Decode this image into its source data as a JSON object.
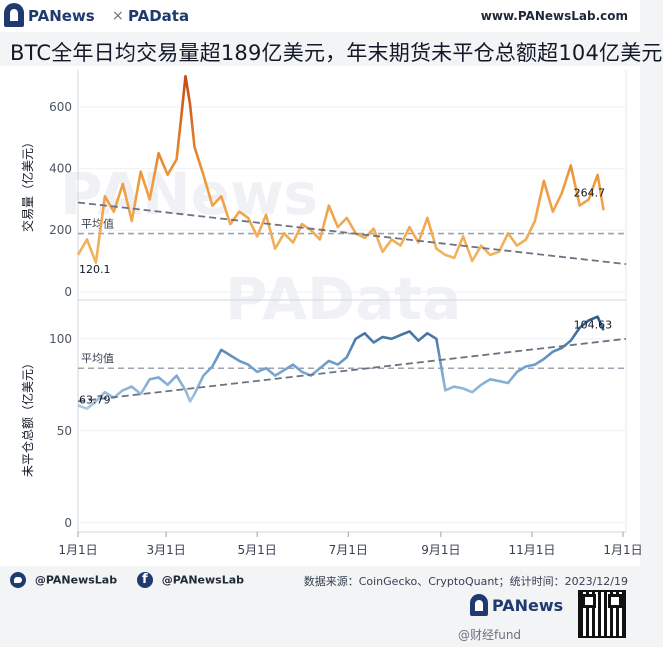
{
  "header": {
    "brand_left": "PANews",
    "separator": "×",
    "brand_right": "PAData",
    "site_url": "www.PANewsLab.com"
  },
  "title": "BTC全年日均交易量超189亿美元，年末期货未平仓总额超104亿美元",
  "watermarks": {
    "top": "PANews",
    "middle": "PAData"
  },
  "footer": {
    "twitter": "@PANewsLab",
    "facebook": "@PANewsLab",
    "source": "数据来源：CoinGecko、CryptoQuant；统计时间：2023/12/19",
    "logo_text": "PANews",
    "overlay_text": "@财经fund"
  },
  "colors": {
    "volume_low": "#f4b462",
    "volume_high": "#c54a12",
    "oi_low": "#a9c9e6",
    "oi_high": "#2a5b8c",
    "average_line": "#9ca3af",
    "trend_line": "#6b7280"
  },
  "chart_data": [
    {
      "type": "line",
      "ylabel": "交易量（亿美元）",
      "ylim": [
        -20,
        720
      ],
      "yticks": [
        0,
        200,
        400,
        600
      ],
      "x_start": "2023-01-01",
      "x_end": "2023-12-19",
      "xticks": [
        "1月1日",
        "3月1日",
        "5月1日",
        "7月1日",
        "9月1日",
        "11月1日",
        "1月1日"
      ],
      "average_label": "平均值",
      "average": 189,
      "first_label": "120.1",
      "last_label": "264.7",
      "trend": [
        290,
        90
      ],
      "x": [
        "2023-01-01",
        "2023-01-07",
        "2023-01-13",
        "2023-01-19",
        "2023-01-25",
        "2023-01-31",
        "2023-02-06",
        "2023-02-12",
        "2023-02-18",
        "2023-02-24",
        "2023-03-02",
        "2023-03-08",
        "2023-03-11",
        "2023-03-14",
        "2023-03-17",
        "2023-03-20",
        "2023-03-26",
        "2023-04-01",
        "2023-04-07",
        "2023-04-13",
        "2023-04-19",
        "2023-04-25",
        "2023-05-01",
        "2023-05-07",
        "2023-05-13",
        "2023-05-19",
        "2023-05-25",
        "2023-05-31",
        "2023-06-06",
        "2023-06-12",
        "2023-06-18",
        "2023-06-24",
        "2023-06-30",
        "2023-07-06",
        "2023-07-12",
        "2023-07-18",
        "2023-07-24",
        "2023-07-30",
        "2023-08-05",
        "2023-08-11",
        "2023-08-17",
        "2023-08-23",
        "2023-08-29",
        "2023-09-04",
        "2023-09-10",
        "2023-09-16",
        "2023-09-22",
        "2023-09-28",
        "2023-10-04",
        "2023-10-10",
        "2023-10-16",
        "2023-10-22",
        "2023-10-28",
        "2023-11-03",
        "2023-11-09",
        "2023-11-15",
        "2023-11-21",
        "2023-11-27",
        "2023-12-03",
        "2023-12-09",
        "2023-12-15",
        "2023-12-19"
      ],
      "values": [
        120.1,
        170,
        95,
        310,
        260,
        350,
        230,
        390,
        300,
        450,
        380,
        430,
        560,
        700,
        610,
        470,
        380,
        280,
        310,
        220,
        260,
        240,
        180,
        250,
        140,
        190,
        160,
        220,
        200,
        170,
        280,
        210,
        240,
        190,
        175,
        205,
        130,
        170,
        150,
        210,
        160,
        240,
        140,
        120,
        110,
        180,
        100,
        150,
        120,
        130,
        190,
        150,
        170,
        230,
        360,
        260,
        320,
        410,
        280,
        300,
        380,
        264.7
      ]
    },
    {
      "type": "line",
      "ylabel": "未平仓总额（亿美元）",
      "ylim": [
        -5,
        120
      ],
      "yticks": [
        0,
        50,
        100
      ],
      "x_start": "2023-01-01",
      "x_end": "2023-12-19",
      "xticks": [
        "1月1日",
        "3月1日",
        "5月1日",
        "7月1日",
        "9月1日",
        "11月1日",
        "1月1日"
      ],
      "average_label": "平均值",
      "average": 84,
      "first_label": "63.79",
      "last_label": "104.63",
      "trend": [
        66,
        100
      ],
      "x": [
        "2023-01-01",
        "2023-01-07",
        "2023-01-13",
        "2023-01-19",
        "2023-01-25",
        "2023-01-31",
        "2023-02-06",
        "2023-02-12",
        "2023-02-18",
        "2023-02-24",
        "2023-03-02",
        "2023-03-08",
        "2023-03-11",
        "2023-03-14",
        "2023-03-17",
        "2023-03-20",
        "2023-03-26",
        "2023-04-01",
        "2023-04-07",
        "2023-04-13",
        "2023-04-19",
        "2023-04-25",
        "2023-05-01",
        "2023-05-07",
        "2023-05-13",
        "2023-05-19",
        "2023-05-25",
        "2023-05-31",
        "2023-06-06",
        "2023-06-12",
        "2023-06-18",
        "2023-06-24",
        "2023-06-30",
        "2023-07-06",
        "2023-07-12",
        "2023-07-18",
        "2023-07-24",
        "2023-07-30",
        "2023-08-05",
        "2023-08-11",
        "2023-08-17",
        "2023-08-23",
        "2023-08-29",
        "2023-09-04",
        "2023-09-10",
        "2023-09-16",
        "2023-09-22",
        "2023-09-28",
        "2023-10-04",
        "2023-10-10",
        "2023-10-16",
        "2023-10-22",
        "2023-10-28",
        "2023-11-03",
        "2023-11-09",
        "2023-11-15",
        "2023-11-21",
        "2023-11-27",
        "2023-12-03",
        "2023-12-09",
        "2023-12-15",
        "2023-12-19"
      ],
      "values": [
        63.79,
        62,
        66,
        71,
        68,
        72,
        74,
        70,
        78,
        79,
        75,
        80,
        76,
        72,
        66,
        70,
        80,
        85,
        94,
        91,
        88,
        86,
        82,
        84,
        80,
        83,
        86,
        82,
        80,
        84,
        88,
        86,
        90,
        100,
        103,
        98,
        101,
        100,
        102,
        104,
        99,
        103,
        100,
        72,
        74,
        73,
        71,
        75,
        78,
        77,
        76,
        82,
        85,
        86,
        89,
        93,
        95,
        99,
        106,
        110,
        112,
        104.63
      ]
    }
  ]
}
